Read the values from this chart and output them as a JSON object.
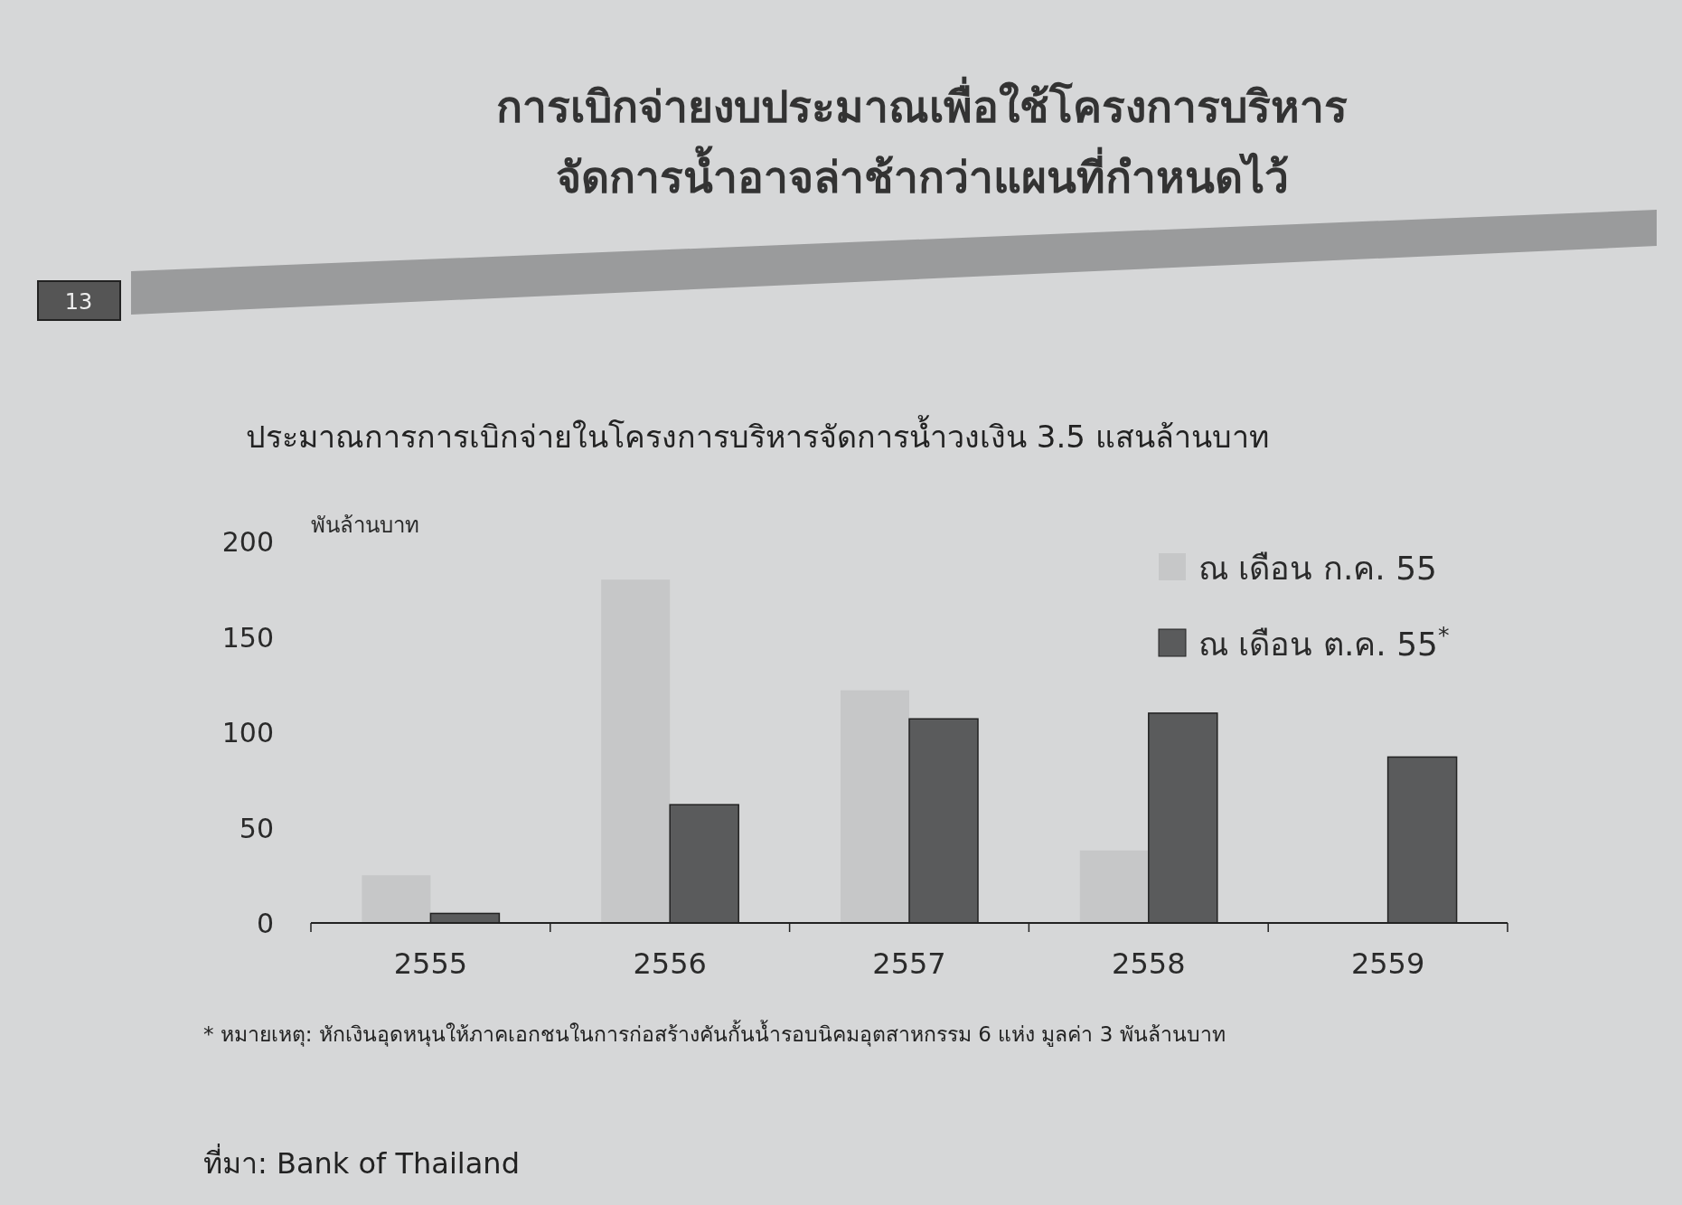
{
  "chart_data": {
    "type": "bar",
    "title": "การเบิกจ่ายงบประมาณเพื่อใช้โครงการบริหาร\nจัดการน้ำอาจล่าช้ากว่าแผนที่กำหนดไว้",
    "subtitle": "ประมาณการการเบิกจ่ายในโครงการบริหารจัดการน้ำวงเงิน 3.5 แสนล้านบาท",
    "ylabel": "พันล้านบาท",
    "categories": [
      "2555",
      "2556",
      "2557",
      "2558",
      "2559"
    ],
    "series": [
      {
        "name": "ณ เดือน ก.ค. 55",
        "color": "#c6c7c8",
        "values": [
          25,
          180,
          122,
          38,
          null
        ]
      },
      {
        "name": "ณ เดือน ต.ค. 55$^{*}$",
        "color": "#5a5b5c",
        "values": [
          5,
          62,
          107,
          110,
          87
        ]
      }
    ],
    "ylim": [
      0,
      200
    ],
    "yticks": [
      0,
      50,
      100,
      150,
      200
    ],
    "grid": false,
    "legend": "top right",
    "annotations": [
      "13",
      "* หมายเหตุ: หักเงินอุดหนุนให้ภาคเอกชนในการก่อสร้างคันกั้นน้ำรอบนิคมอุตสาหกรรม 6 แห่ง มูลค่า 3 พันล้านบาท",
      "ที่มา: Bank of Thailand"
    ]
  }
}
